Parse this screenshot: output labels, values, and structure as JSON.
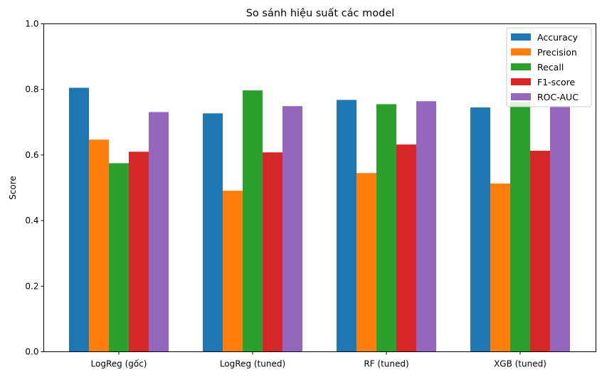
{
  "chart_data": {
    "type": "bar",
    "title": "So sánh hiệu suất các model",
    "xlabel": "",
    "ylabel": "Score",
    "ylim": [
      0,
      1.0
    ],
    "yticks": [
      "0.0",
      "0.2",
      "0.4",
      "0.6",
      "0.8",
      "1.0"
    ],
    "grid": false,
    "legend_position": "top-right",
    "categories": [
      "LogReg (gốc)",
      "LogReg (tuned)",
      "RF (tuned)",
      "XGB (tuned)"
    ],
    "series": [
      {
        "name": "Accuracy",
        "color": "#1f77b4",
        "values": [
          0.805,
          0.727,
          0.768,
          0.745
        ]
      },
      {
        "name": "Precision",
        "color": "#ff7f0e",
        "values": [
          0.647,
          0.491,
          0.545,
          0.513
        ]
      },
      {
        "name": "Recall",
        "color": "#2ca02c",
        "values": [
          0.575,
          0.797,
          0.755,
          0.761
        ]
      },
      {
        "name": "F1-score",
        "color": "#d62728",
        "values": [
          0.61,
          0.608,
          0.632,
          0.613
        ]
      },
      {
        "name": "ROC-AUC",
        "color": "#9467bd",
        "values": [
          0.731,
          0.749,
          0.764,
          0.75
        ]
      }
    ]
  }
}
